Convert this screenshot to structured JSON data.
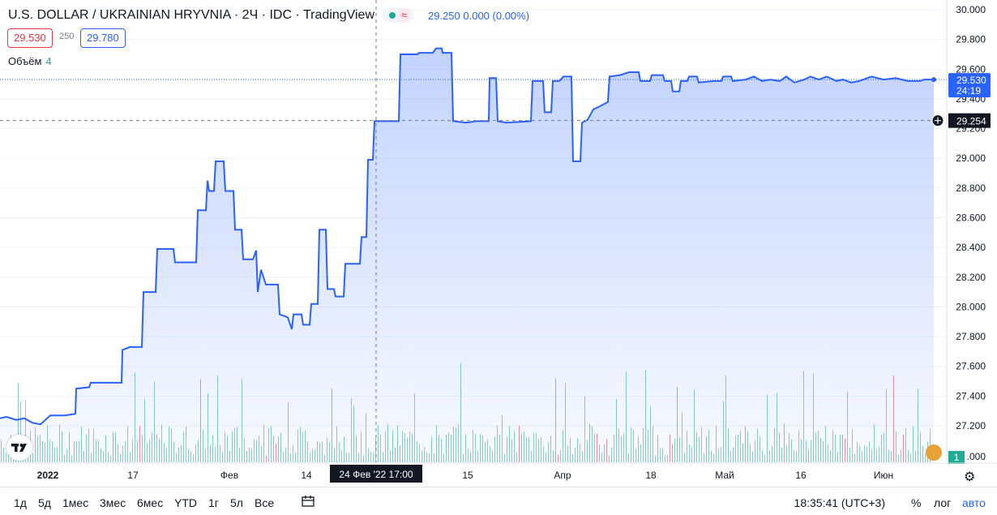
{
  "header": {
    "symbol": "U.S. DOLLAR / UKRAINIAN HRYVNIA",
    "sep1": " · ",
    "interval": "2Ч",
    "sep2": " · ",
    "source": "IDC",
    "sep3": " · ",
    "platform": "TradingView",
    "wave_icon": "≈",
    "quote": "29.250  0.000 (0.00%)",
    "bid": "29.530",
    "spread": "250",
    "ask": "29.780",
    "volume_label": "Объём",
    "volume_value": "4"
  },
  "colors": {
    "line": "#2962ff",
    "area": "#2962ff",
    "vol_up": "#22ab94",
    "vol_down": "#f23645",
    "grid": "#f0f3fa",
    "text": "#131722"
  },
  "chart_data": {
    "type": "area",
    "title": "U.S. DOLLAR / UKRAINIAN HRYVNIA",
    "ylim": [
      27.05,
      30.0
    ],
    "y_ticks": [
      "30.000",
      "29.800",
      "29.600",
      "29.400",
      "29.200",
      "29.000",
      "28.800",
      "28.600",
      "28.400",
      "28.200",
      "28.000",
      "27.800",
      "27.600",
      "27.400",
      "27.200"
    ],
    "x_labels": [
      "2022",
      "17",
      "Фев",
      "14",
      "15",
      "Апр",
      "18",
      "Май",
      "16",
      "Июн"
    ],
    "x_label_positions_ref": [
      59,
      164,
      283,
      378,
      577,
      694,
      803,
      894,
      988,
      1090
    ],
    "series": [
      {
        "points": [
          [
            0,
            27.25
          ],
          [
            8,
            27.26
          ],
          [
            20,
            27.24
          ],
          [
            30,
            27.25
          ],
          [
            40,
            27.22
          ],
          [
            50,
            27.21
          ],
          [
            62,
            27.27
          ],
          [
            80,
            27.27
          ],
          [
            93,
            27.28
          ],
          [
            94,
            27.45
          ],
          [
            110,
            27.46
          ],
          [
            112,
            27.49
          ],
          [
            150,
            27.49
          ],
          [
            151,
            27.71
          ],
          [
            160,
            27.73
          ],
          [
            175,
            27.73
          ],
          [
            177,
            28.1
          ],
          [
            192,
            28.1
          ],
          [
            194,
            28.39
          ],
          [
            214,
            28.39
          ],
          [
            216,
            28.3
          ],
          [
            242,
            28.3
          ],
          [
            244,
            28.65
          ],
          [
            254,
            28.65
          ],
          [
            256,
            28.85
          ],
          [
            258,
            28.78
          ],
          [
            264,
            28.78
          ],
          [
            266,
            28.98
          ],
          [
            276,
            28.98
          ],
          [
            278,
            28.78
          ],
          [
            288,
            28.78
          ],
          [
            290,
            28.52
          ],
          [
            298,
            28.52
          ],
          [
            300,
            28.32
          ],
          [
            312,
            28.32
          ],
          [
            316,
            28.38
          ],
          [
            318,
            28.1
          ],
          [
            322,
            28.25
          ],
          [
            328,
            28.15
          ],
          [
            343,
            28.15
          ],
          [
            345,
            27.95
          ],
          [
            355,
            27.93
          ],
          [
            360,
            27.85
          ],
          [
            362,
            27.95
          ],
          [
            372,
            27.95
          ],
          [
            374,
            27.88
          ],
          [
            382,
            27.88
          ],
          [
            384,
            28.02
          ],
          [
            392,
            28.02
          ],
          [
            394,
            28.52
          ],
          [
            402,
            28.52
          ],
          [
            404,
            28.12
          ],
          [
            412,
            28.12
          ],
          [
            414,
            28.07
          ],
          [
            424,
            28.07
          ],
          [
            426,
            28.29
          ],
          [
            444,
            28.29
          ],
          [
            446,
            28.47
          ],
          [
            452,
            28.47
          ],
          [
            454,
            28.99
          ],
          [
            460,
            28.99
          ],
          [
            462,
            29.25
          ],
          [
            472,
            29.25
          ],
          [
            492,
            29.25
          ],
          [
            494,
            29.7
          ],
          [
            515,
            29.7
          ],
          [
            517,
            29.71
          ],
          [
            534,
            29.71
          ],
          [
            538,
            29.74
          ],
          [
            545,
            29.74
          ],
          [
            546,
            29.71
          ],
          [
            557,
            29.71
          ],
          [
            559,
            29.25
          ],
          [
            575,
            29.24
          ],
          [
            588,
            29.25
          ],
          [
            603,
            29.25
          ],
          [
            604,
            29.54
          ],
          [
            612,
            29.54
          ],
          [
            614,
            29.25
          ],
          [
            625,
            29.24
          ],
          [
            655,
            29.25
          ],
          [
            657,
            29.52
          ],
          [
            670,
            29.52
          ],
          [
            672,
            29.31
          ],
          [
            680,
            29.31
          ],
          [
            682,
            29.52
          ],
          [
            690,
            29.52
          ],
          [
            695,
            29.55
          ],
          [
            705,
            29.55
          ],
          [
            707,
            28.98
          ],
          [
            716,
            28.98
          ],
          [
            718,
            29.24
          ],
          [
            725,
            29.26
          ],
          [
            732,
            29.33
          ],
          [
            740,
            29.35
          ],
          [
            750,
            29.38
          ],
          [
            752,
            29.55
          ],
          [
            765,
            29.56
          ],
          [
            776,
            29.58
          ],
          [
            788,
            29.58
          ],
          [
            790,
            29.52
          ],
          [
            802,
            29.52
          ],
          [
            804,
            29.56
          ],
          [
            818,
            29.56
          ],
          [
            820,
            29.52
          ],
          [
            828,
            29.52
          ],
          [
            830,
            29.45
          ],
          [
            838,
            29.45
          ],
          [
            840,
            29.52
          ],
          [
            848,
            29.52
          ],
          [
            850,
            29.55
          ],
          [
            860,
            29.55
          ],
          [
            862,
            29.51
          ],
          [
            880,
            29.52
          ],
          [
            890,
            29.52
          ],
          [
            892,
            29.55
          ],
          [
            902,
            29.55
          ],
          [
            904,
            29.52
          ],
          [
            920,
            29.53
          ],
          [
            930,
            29.55
          ],
          [
            940,
            29.52
          ],
          [
            950,
            29.53
          ],
          [
            962,
            29.52
          ],
          [
            970,
            29.55
          ],
          [
            980,
            29.51
          ],
          [
            992,
            29.53
          ],
          [
            1000,
            29.55
          ],
          [
            1010,
            29.53
          ],
          [
            1020,
            29.55
          ],
          [
            1032,
            29.52
          ],
          [
            1040,
            29.53
          ],
          [
            1050,
            29.51
          ],
          [
            1060,
            29.52
          ],
          [
            1075,
            29.55
          ],
          [
            1090,
            29.53
          ],
          [
            1105,
            29.54
          ],
          [
            1120,
            29.52
          ],
          [
            1135,
            29.52
          ],
          [
            1140,
            29.53
          ],
          [
            1152,
            29.53
          ]
        ]
      }
    ],
    "last_price": "29.530",
    "countdown": "24:19",
    "crosshair_price": "29.254",
    "crosshair_date": "24 Фев '22",
    "crosshair_time": "17:00",
    "volume_axis_label": ".000",
    "volume_badge": "1"
  },
  "bottom": {
    "timeframes": [
      "1д",
      "5д",
      "1мес",
      "3мес",
      "6мес",
      "YTD",
      "1г",
      "5л",
      "Все"
    ],
    "time": "18:35:41 (UTC+3)",
    "percent": "%",
    "log": "лог",
    "auto": "авто"
  }
}
